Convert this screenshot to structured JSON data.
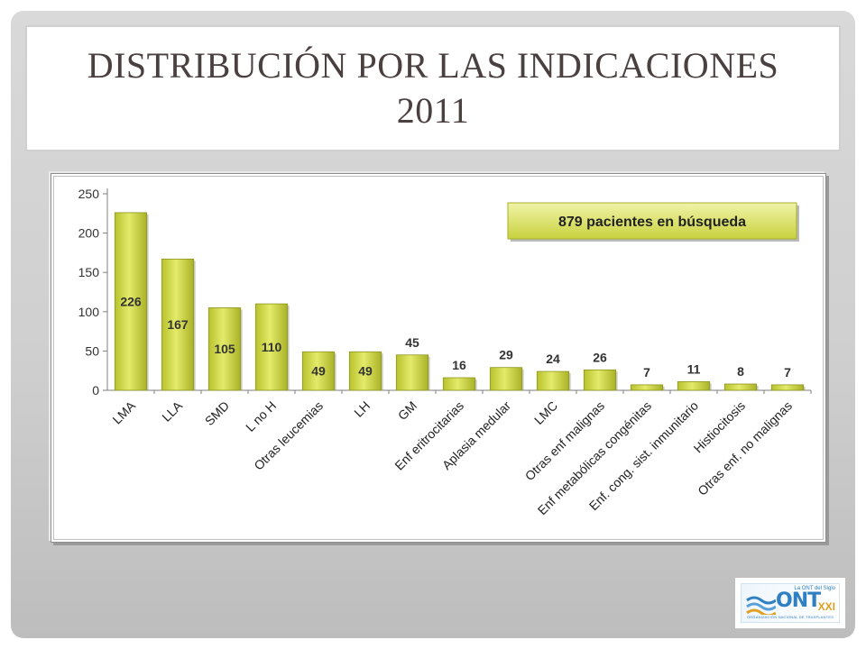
{
  "slide": {
    "title_line1": "DISTRIBUCIÓN POR LAS INDICACIONES",
    "title_line2": "2011"
  },
  "chart_data": {
    "type": "bar",
    "title": "",
    "xlabel": "",
    "ylabel": "",
    "ylim": [
      0,
      250
    ],
    "yticks": [
      0,
      50,
      100,
      150,
      200,
      250
    ],
    "grid": false,
    "categories": [
      "LMA",
      "LLA",
      "SMD",
      "L no H",
      "Otras leucemias",
      "LH",
      "GM",
      "Enf eritrocitarias",
      "Aplasia medular",
      "LMC",
      "Otras enf malignas",
      "Enf metabólicas congénitas",
      "Enf. cong. sist. inmunitario",
      "Histiocitosis",
      "Otras enf. no malignas"
    ],
    "values": [
      226,
      167,
      105,
      110,
      49,
      49,
      45,
      16,
      29,
      24,
      26,
      7,
      11,
      8,
      7
    ],
    "bar_color": "#d4dc4a",
    "annotation": "879 pacientes en búsqueda"
  },
  "logo": {
    "name": "ONT",
    "tag": "La ONT del Siglo",
    "edition": "XXI",
    "subtitle": "ORGANIZACIÓN NACIONAL DE TRASPLANTES"
  }
}
